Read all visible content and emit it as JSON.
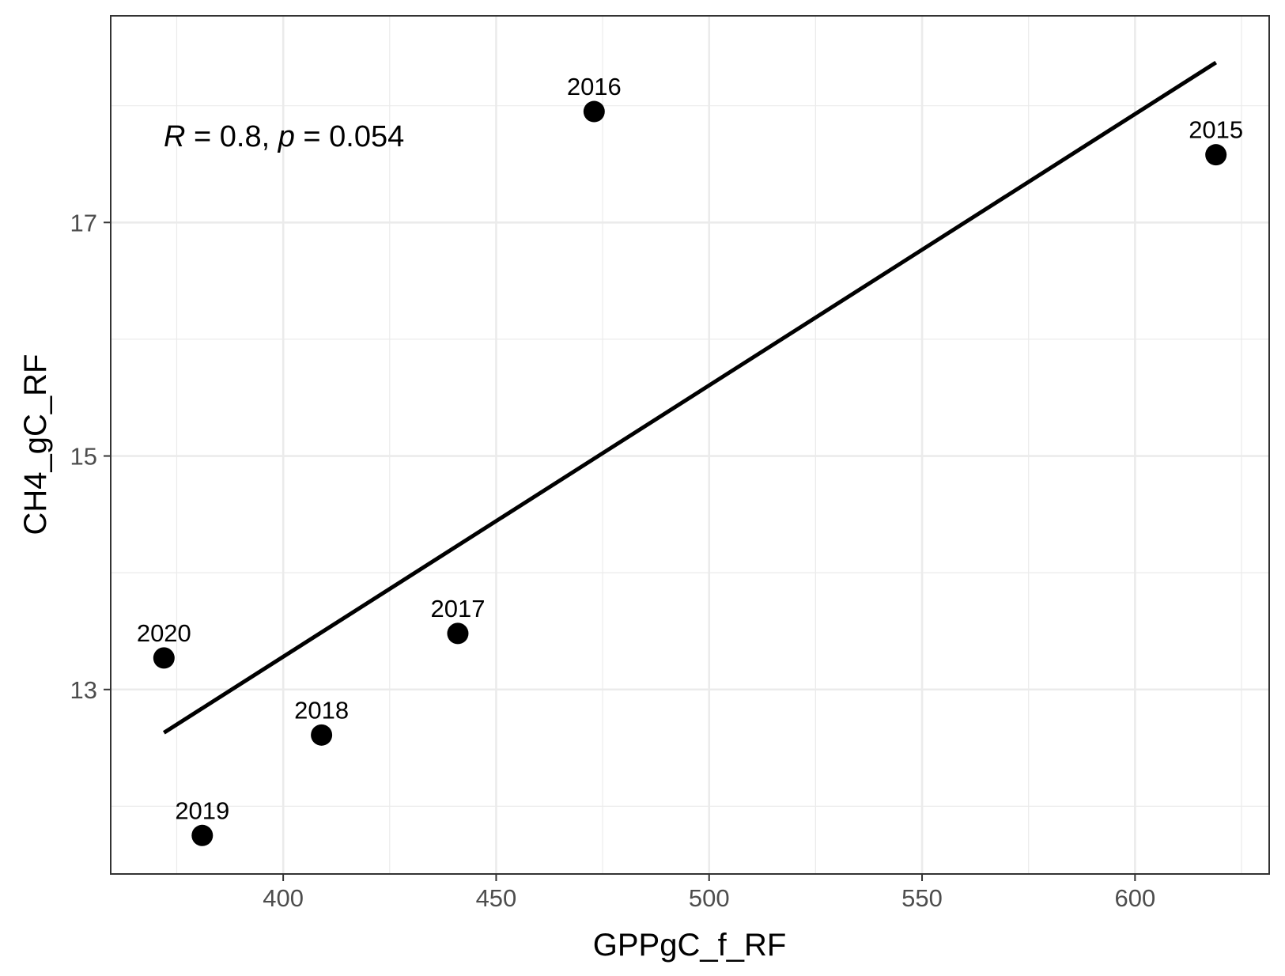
{
  "chart_data": {
    "type": "scatter",
    "xlabel": "GPPgC_f_RF",
    "ylabel": "CH4_gC_RF",
    "xlim": [
      359.5,
      631.5
    ],
    "ylim": [
      11.42,
      18.77
    ],
    "x_ticks": [
      400,
      450,
      500,
      550,
      600
    ],
    "x_tick_labels": [
      "400",
      "450",
      "500",
      "550",
      "600"
    ],
    "x_minor_ticks": [
      375,
      425,
      475,
      525,
      575,
      625
    ],
    "y_ticks": [
      13,
      15,
      17
    ],
    "y_tick_labels": [
      "13",
      "15",
      "17"
    ],
    "y_minor_ticks": [
      12,
      14,
      16,
      18
    ],
    "grid": true,
    "points": [
      {
        "label": "2015",
        "x": 619,
        "y": 17.58
      },
      {
        "label": "2016",
        "x": 473,
        "y": 17.95
      },
      {
        "label": "2017",
        "x": 441,
        "y": 13.48
      },
      {
        "label": "2018",
        "x": 409,
        "y": 12.61
      },
      {
        "label": "2019",
        "x": 381,
        "y": 11.75
      },
      {
        "label": "2020",
        "x": 372,
        "y": 13.27
      }
    ],
    "regression_line": {
      "x": [
        372,
        619
      ],
      "y": [
        12.63,
        18.37
      ]
    },
    "annotation": {
      "r_symbol": "R",
      "r_text": " = 0.8, ",
      "p_symbol": "p",
      "p_text": " = 0.054"
    },
    "colors": {
      "points": "#000000",
      "line": "#000000",
      "grid": "#ebebeb",
      "panel_border": "#333333"
    }
  }
}
